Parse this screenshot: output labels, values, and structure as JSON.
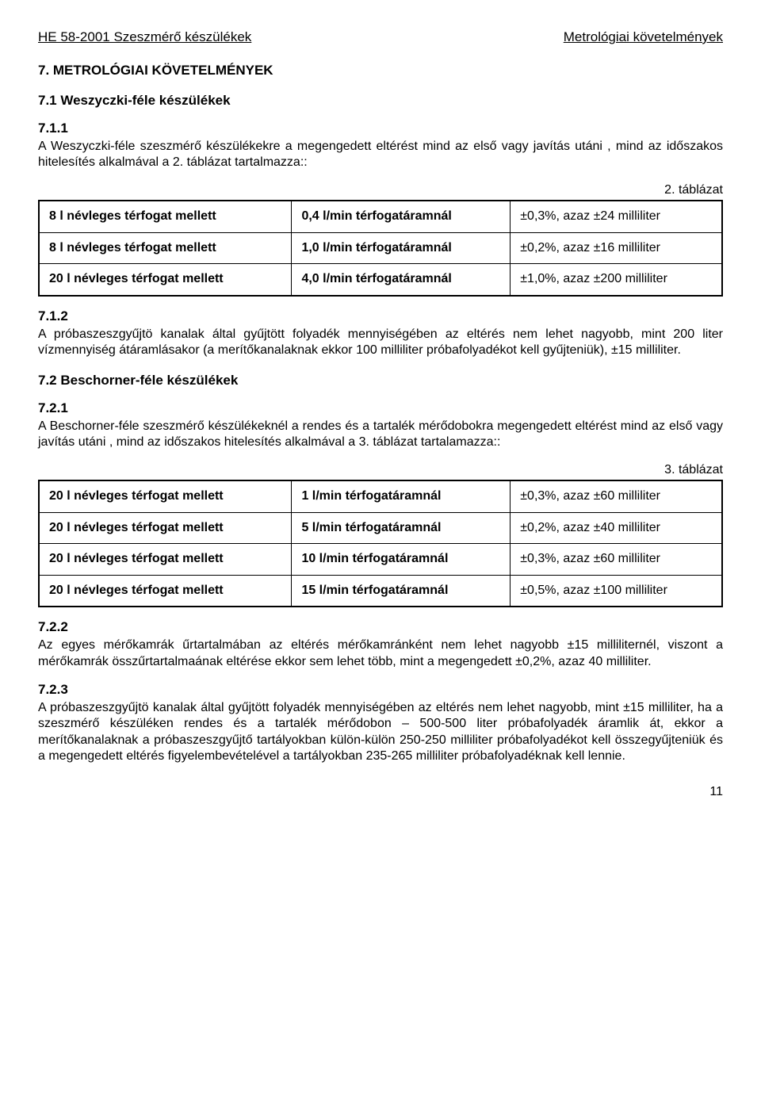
{
  "header": {
    "left": "HE 58-2001 Szeszmérő készülékek",
    "right": "Metrológiai követelmények"
  },
  "sec7": {
    "title": "7.  METROLÓGIAI KÖVETELMÉNYEK",
    "sub71": "7.1  Weszyczki-féle készülékek",
    "c711_num": "7.1.1",
    "c711_body": "A Weszyczki-féle szeszmérő készülékekre a megengedett eltérést  mind az első  vagy javítás utáni , mind az időszakos hitelesítés alkalmával a 2. táblázat tartalmazza::",
    "t2_label": "2. táblázat",
    "t2": {
      "rows": [
        [
          "8 l névleges térfogat mellett",
          "0,4 l/min térfogatáramnál",
          "±0,3%, azaz ±24 milliliter"
        ],
        [
          "8 l névleges térfogat mellett",
          "1,0 l/min térfogatáramnál",
          "±0,2%, azaz ±16 milliliter"
        ],
        [
          "20 l névleges térfogat mellett",
          "4,0 l/min térfogatáramnál",
          "±1,0%, azaz ±200 milliliter"
        ]
      ]
    },
    "c712_num": "7.1.2",
    "c712_body": "A próbaszeszgyűjtö kanalak által gyűjtött folyadék mennyiségében az eltérés nem lehet nagyobb, mint 200 liter vízmennyiség átáramlásakor (a merítőkanalaknak ekkor 100 milliliter próbafolyadékot kell gyűjteniük), ±15 milliliter.",
    "sub72": "7.2  Beschorner-féle készülékek",
    "c721_num": "7.2.1",
    "c721_body": "A Beschorner-féle szeszmérő készülékeknél a rendes és a tartalék mérődobokra megengedett eltérést  mind az első  vagy javítás utáni , mind az időszakos hitelesítés alkalmával a 3. táblázat tartalamazza::",
    "t3_label": "3. táblázat",
    "t3": {
      "rows": [
        [
          "20 l névleges térfogat mellett",
          "1 l/min térfogatáramnál",
          "±0,3%, azaz ±60 milliliter"
        ],
        [
          "20 l névleges térfogat mellett",
          "5 l/min térfogatáramnál",
          "±0,2%, azaz ±40 milliliter"
        ],
        [
          "20 l névleges térfogat mellett",
          "10 l/min térfogatáramnál",
          "±0,3%, azaz ±60 milliliter"
        ],
        [
          "20 l névleges térfogat mellett",
          "15 l/min térfogatáramnál",
          "±0,5%, azaz ±100 milliliter"
        ]
      ]
    },
    "c722_num": "7.2.2",
    "c722_body": "Az egyes mérőkamrák űrtartalmában az eltérés mérőkamránként nem lehet nagyobb ±15 milliliternél, viszont a mérőkamrák összűrtartalmaának eltérése ekkor sem lehet több, mint a megengedett ±0,2%, azaz 40 milliliter.",
    "c723_num": "7.2.3",
    "c723_body": "A próbaszeszgyűjtö kanalak által gyűjtött folyadék mennyiségében az eltérés nem lehet nagyobb, mint ±15 milliliter, ha a szeszmérő készüléken rendes és a tartalék mérődobon – 500-500 liter próbafolyadék áramlik át, ekkor a merítőkanalaknak a próbaszeszgyűjtő tartályokban külön-külön 250-250 milliliter próbafolyadékot kell összegyűjteniük és a megengedett eltérés figyelembevételével a tartályokban 235-265 milliliter próbafolyadéknak kell lennie."
  },
  "page_num": "11"
}
